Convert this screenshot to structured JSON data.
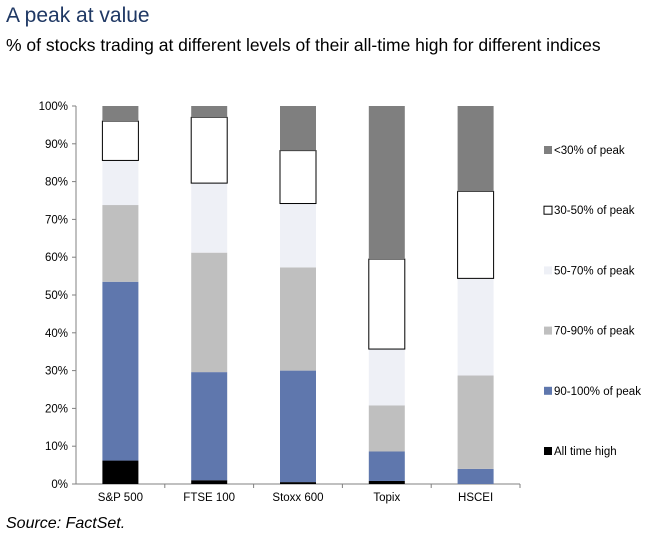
{
  "title": "A peak at value",
  "subtitle": "% of stocks trading at different levels of their all-time high for different indices",
  "source": "Source: FactSet.",
  "chart_data": {
    "type": "bar",
    "stacked": true,
    "categories": [
      "S&P 500",
      "FTSE 100",
      "Stoxx 600",
      "Topix",
      "HSCEI"
    ],
    "series": [
      {
        "name": "All time high",
        "color": "#000000",
        "values": [
          6.2,
          1.0,
          0.5,
          0.8,
          0.0
        ]
      },
      {
        "name": "90-100% of peak",
        "color": "#5f77ad",
        "values": [
          47.3,
          28.6,
          29.5,
          7.8,
          4.0
        ]
      },
      {
        "name": "70-90% of peak",
        "color": "#bfbfbf",
        "values": [
          20.3,
          31.6,
          27.3,
          12.2,
          24.7
        ]
      },
      {
        "name": "50-70% of peak",
        "color": "#eef0f6",
        "values": [
          11.8,
          18.4,
          16.9,
          14.9,
          25.7
        ]
      },
      {
        "name": "30-50% of peak",
        "color": "#ffffff",
        "values": [
          10.4,
          17.4,
          14.0,
          23.8,
          23.0
        ]
      },
      {
        "name": "<30% of peak",
        "color": "#7f7f7f",
        "values": [
          4.0,
          3.0,
          11.8,
          40.5,
          22.6
        ]
      }
    ],
    "ylim": [
      0,
      100
    ],
    "yticks": [
      "0%",
      "10%",
      "20%",
      "30%",
      "40%",
      "50%",
      "60%",
      "70%",
      "80%",
      "90%",
      "100%"
    ],
    "legend_position": "right",
    "grid": false
  }
}
